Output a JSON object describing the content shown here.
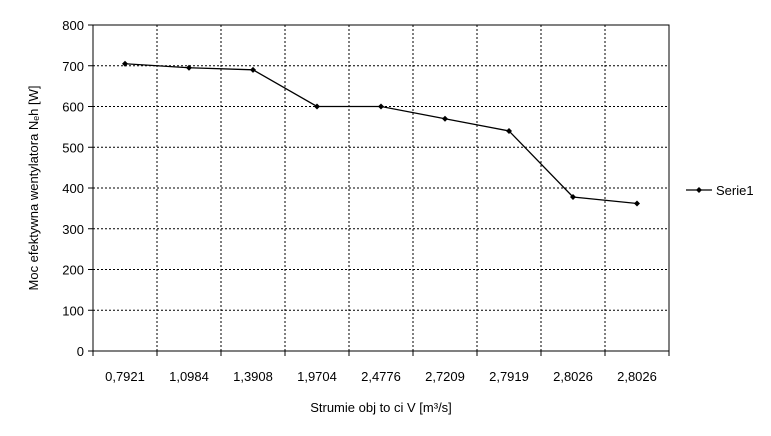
{
  "chart_data": {
    "type": "line",
    "categories": [
      "0,7921",
      "1,0984",
      "1,3908",
      "1,9704",
      "2,4776",
      "2,7209",
      "2,7919",
      "2,8026",
      "2,8026"
    ],
    "series": [
      {
        "name": "Serie1",
        "values": [
          705,
          695,
          690,
          600,
          600,
          570,
          540,
          378,
          362
        ]
      }
    ],
    "xlabel": "Strumie   obj  to  ci V [m³/s]",
    "ylabel": "Moc efektywna wentylatora Nₑh [W]",
    "ylim": [
      0,
      800
    ],
    "yticks": [
      "0",
      "100",
      "200",
      "300",
      "400",
      "500",
      "600",
      "700",
      "800"
    ],
    "grid": "dotted",
    "legend_position": "right",
    "colors": {
      "line": "#000000",
      "grid": "#000000",
      "axis": "#000000"
    }
  }
}
